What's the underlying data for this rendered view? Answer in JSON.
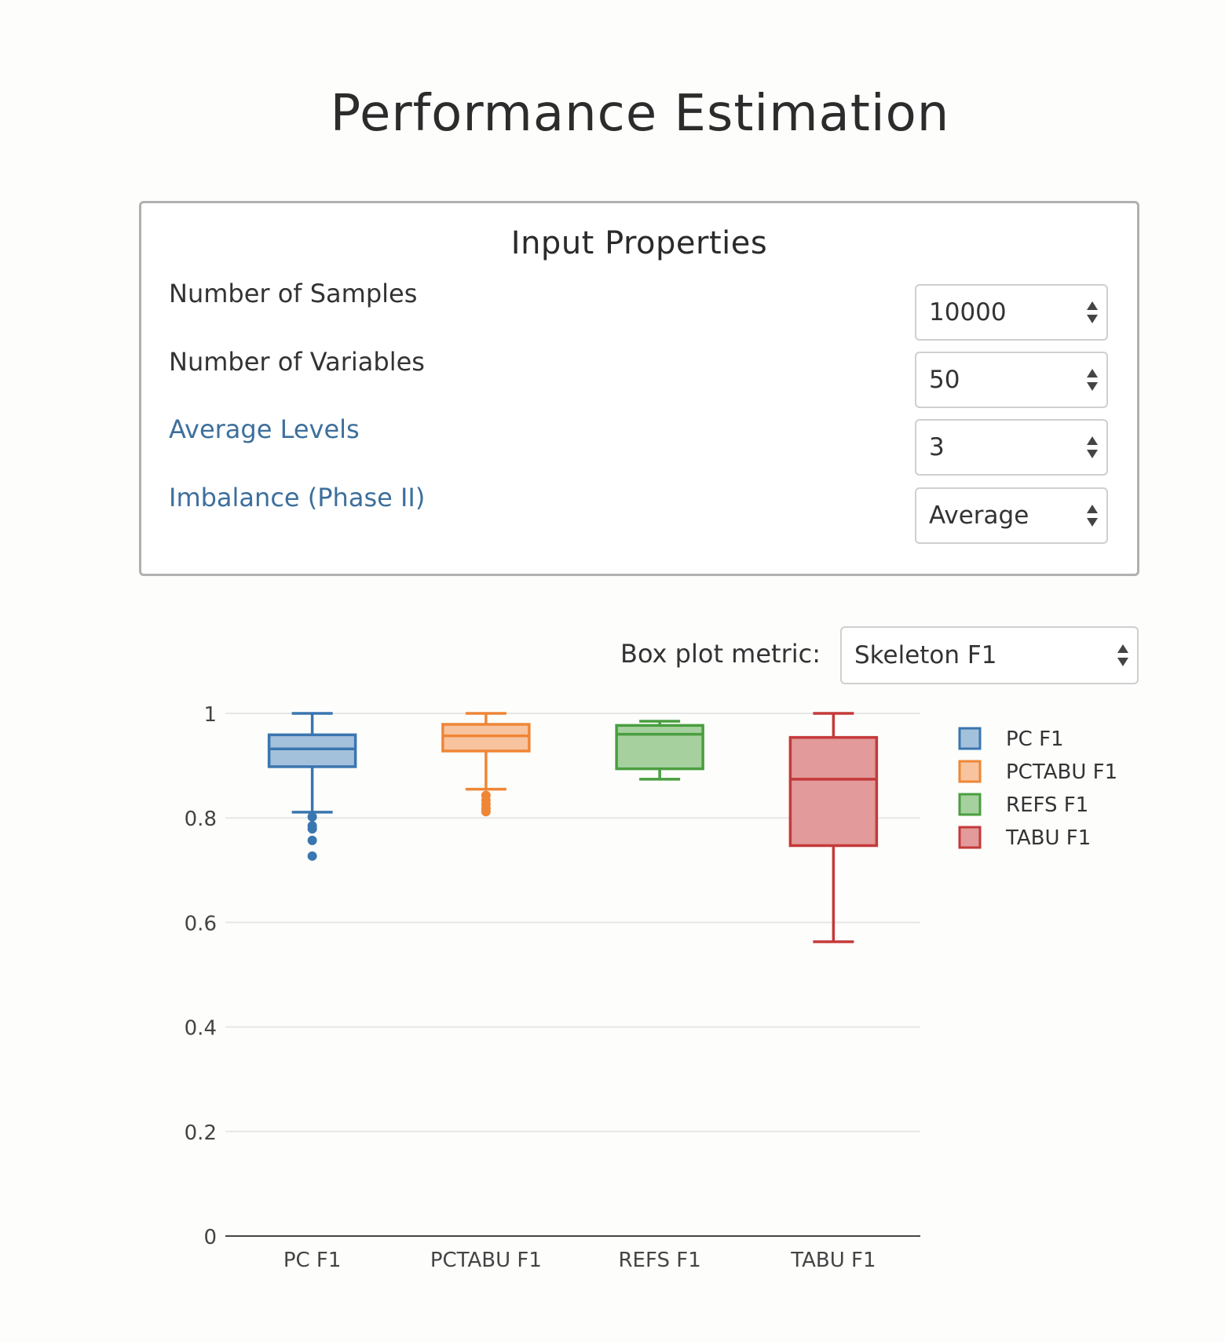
{
  "page": {
    "title": "Performance Estimation"
  },
  "input_panel": {
    "title": "Input Properties",
    "properties": [
      {
        "label": "Number of Samples",
        "value": "10000",
        "style": "plain"
      },
      {
        "label": "Number of Variables",
        "value": "50",
        "style": "plain"
      },
      {
        "label": "Average Levels",
        "value": "3",
        "style": "link"
      },
      {
        "label": "Imbalance (Phase II)",
        "value": "Average",
        "style": "link"
      }
    ]
  },
  "metric": {
    "label": "Box plot metric:",
    "selected": "Skeleton F1"
  },
  "chart_data": {
    "type": "box",
    "ylim": [
      0,
      1
    ],
    "yticks": [
      {
        "value": 0,
        "label": "0"
      },
      {
        "value": 0.2,
        "label": "0.2"
      },
      {
        "value": 0.4,
        "label": "0.4"
      },
      {
        "value": 0.6,
        "label": "0.6"
      },
      {
        "value": 0.8,
        "label": "0.8"
      },
      {
        "value": 1,
        "label": "1"
      }
    ],
    "grid": true,
    "legend_position": "right",
    "categories": [
      "PC F1",
      "PCTABU F1",
      "REFS F1",
      "TABU F1"
    ],
    "series": [
      {
        "name": "PC F1",
        "color": "#3a76af",
        "fill": "#a4c1dc",
        "whisker_low": 0.811,
        "q1": 0.898,
        "median": 0.932,
        "q3": 0.959,
        "whisker_high": 1.0,
        "outliers": [
          0.802,
          0.785,
          0.779,
          0.757,
          0.727
        ]
      },
      {
        "name": "PCTABU F1",
        "color": "#ef8636",
        "fill": "#f7c49f",
        "whisker_low": 0.855,
        "q1": 0.928,
        "median": 0.957,
        "q3": 0.979,
        "whisker_high": 1.0,
        "outliers": [
          0.843,
          0.834,
          0.826,
          0.818,
          0.812
        ]
      },
      {
        "name": "REFS F1",
        "color": "#4a9e3f",
        "fill": "#a6d19f",
        "whisker_low": 0.874,
        "q1": 0.894,
        "median": 0.96,
        "q3": 0.977,
        "whisker_high": 0.985,
        "outliers": []
      },
      {
        "name": "TABU F1",
        "color": "#c5393a",
        "fill": "#e29a9a",
        "whisker_low": 0.563,
        "q1": 0.747,
        "median": 0.874,
        "q3": 0.954,
        "whisker_high": 1.0,
        "outliers": []
      }
    ]
  }
}
